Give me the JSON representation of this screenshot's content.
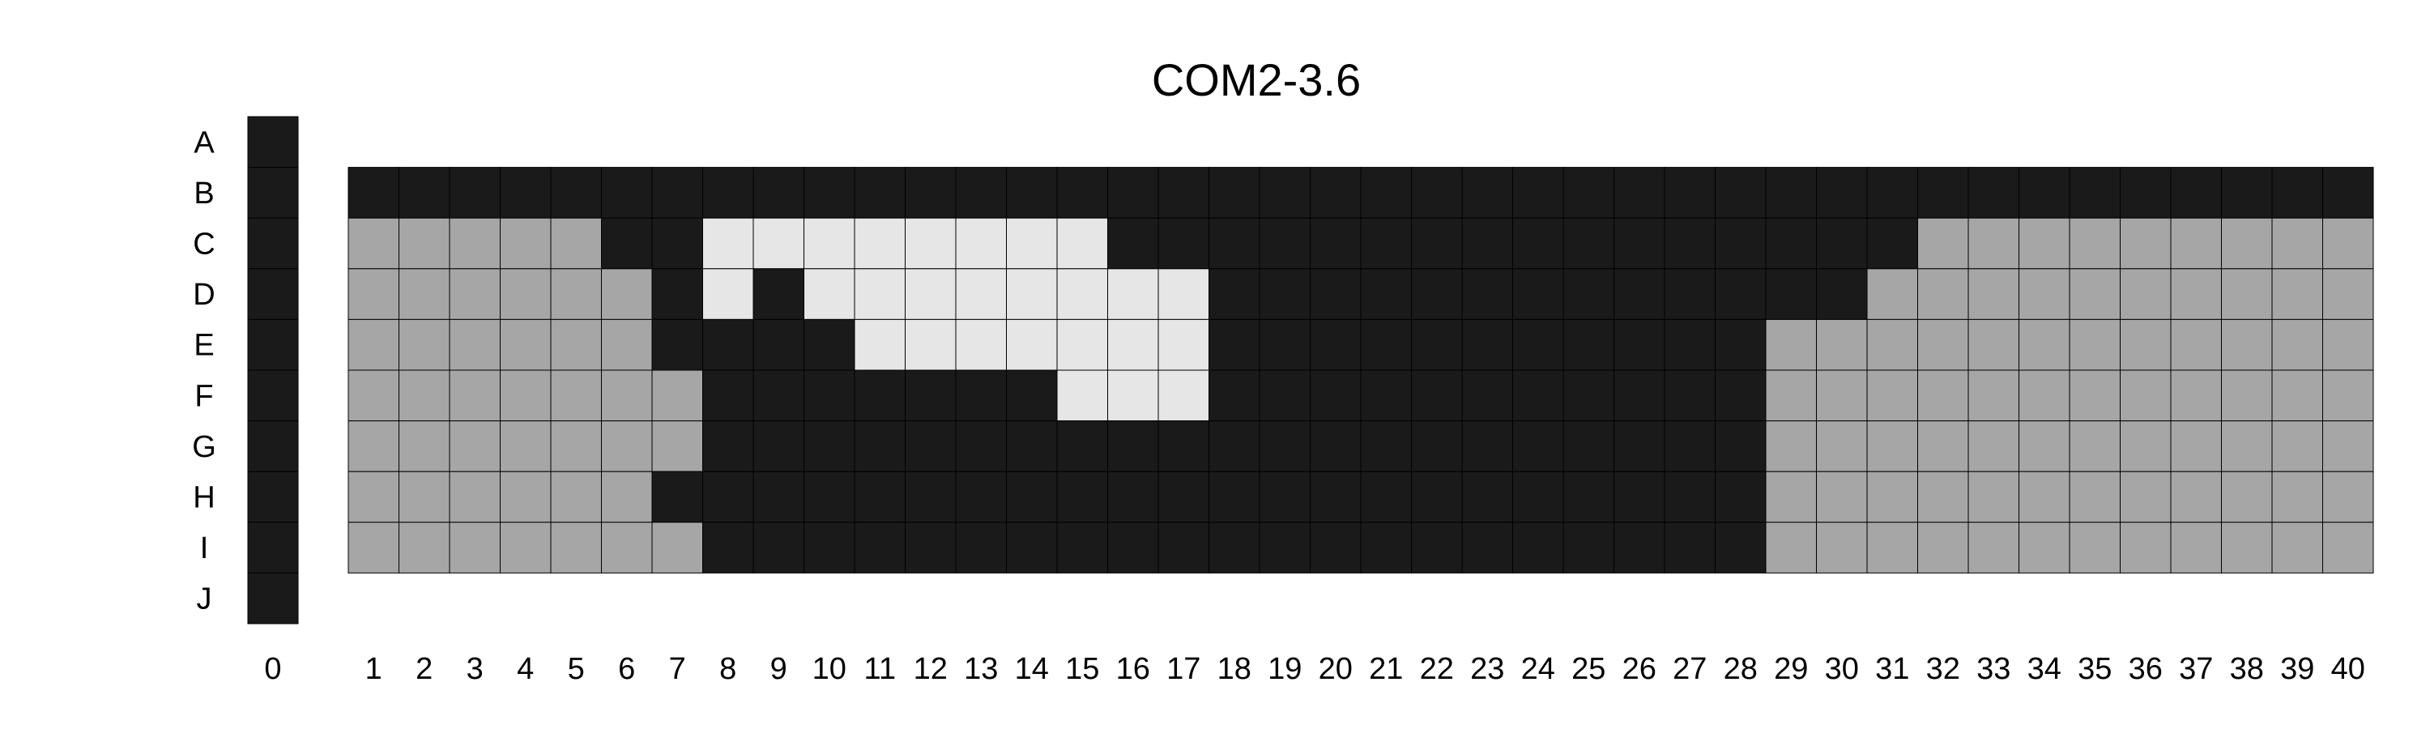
{
  "chart_data": {
    "type": "heatmap",
    "title": "COM2-3.6",
    "xlabel": "",
    "ylabel": "",
    "rows": [
      "A",
      "B",
      "C",
      "D",
      "E",
      "F",
      "G",
      "H",
      "I",
      "J"
    ],
    "columns": [
      "0",
      "1",
      "2",
      "3",
      "4",
      "5",
      "6",
      "7",
      "8",
      "9",
      "10",
      "11",
      "12",
      "13",
      "14",
      "15",
      "16",
      "17",
      "18",
      "19",
      "20",
      "21",
      "22",
      "23",
      "24",
      "25",
      "26",
      "27",
      "28",
      "29",
      "30",
      "31",
      "32",
      "33",
      "34",
      "35",
      "36",
      "37",
      "38",
      "39",
      "40"
    ],
    "legend": [
      {
        "code": "D",
        "color": "#1a1a1a"
      },
      {
        "code": "G",
        "color": "#a6a6a6"
      },
      {
        "code": "L",
        "color": "#e6e6e6"
      }
    ],
    "cells": {
      "A": "D_______________________________________",
      "B": "DDDDDDDDDDDDDDDDDDDDDDDDDDDDDDDDDDDDDDDDD",
      "C": "DGGGGGDDLLLLLLLLDDDDDDDDDDDDDDDDGGGGGGGGG",
      "D": "DGGGGGGDLDLLLLLLLLDDDDDDDDDDDDDGGGGGGGGGG",
      "E": "DGGGGGGDDDDLLLLLLLDDDDDDDDDDDGGGGGGGGGGGG",
      "F": "DGGGGGGGDDDDDDDLLLDDDDDDDDDDDGGGGGGGGGGGG",
      "G": "DGGGGGGGDDDDDDDDDDDDDDDDDDDDDGGGGGGGGGGGG",
      "H": "DGGGGGGDDDDDDDDDDDDDDDDDDDDDDGGGGGGGGGGGG",
      "I": "DGGGGGGGDDDDDDDDDDDDDDDDDDDDDGGGGGGGGGGGG",
      "J": "D_______________________________________"
    }
  }
}
